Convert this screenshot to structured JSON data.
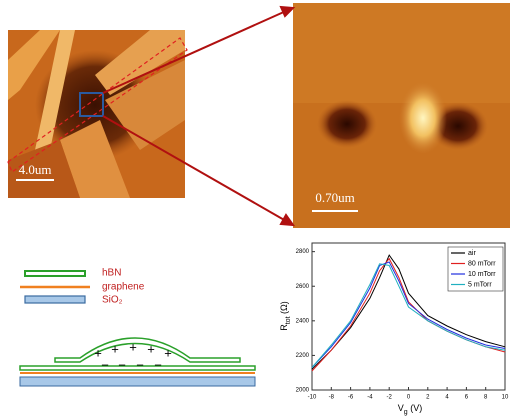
{
  "afm_large": {
    "scale_bar": "4.0um"
  },
  "afm_zoom": {
    "scale_bar": "0.70um"
  },
  "schematic": {
    "legend": [
      "hBN",
      "graphene",
      "SiO₂"
    ],
    "positive": "+",
    "negative": "−"
  },
  "chart_data": {
    "type": "line",
    "x_label": {
      "main": "V",
      "sub": "g",
      "unit": " (V)"
    },
    "y_label": {
      "main": "R",
      "sub": "tot",
      "unit": " (Ω)"
    },
    "x": [
      -10,
      -8,
      -6,
      -4,
      -3,
      -2,
      -1,
      0,
      2,
      4,
      6,
      8,
      10
    ],
    "xlim": [
      -10,
      10
    ],
    "xticks": [
      -10,
      -8,
      -6,
      -4,
      -2,
      0,
      2,
      4,
      6,
      8,
      10
    ],
    "ylim": [
      2000,
      2850
    ],
    "yticks": [
      2000,
      2200,
      2400,
      2600,
      2800
    ],
    "legend": "upper right",
    "series": [
      {
        "name": "air",
        "color": "#000000",
        "values": [
          2120,
          2230,
          2360,
          2530,
          2650,
          2780,
          2700,
          2560,
          2430,
          2370,
          2320,
          2280,
          2250
        ]
      },
      {
        "name": "80 mTorr",
        "color": "#e02020",
        "values": [
          2110,
          2230,
          2370,
          2560,
          2690,
          2760,
          2650,
          2510,
          2400,
          2340,
          2290,
          2250,
          2220
        ]
      },
      {
        "name": "10 mTorr",
        "color": "#2030e0",
        "values": [
          2130,
          2250,
          2390,
          2590,
          2720,
          2740,
          2630,
          2500,
          2410,
          2350,
          2300,
          2260,
          2240
        ]
      },
      {
        "name": "5 mTorr",
        "color": "#20b0c0",
        "values": [
          2130,
          2260,
          2400,
          2610,
          2730,
          2720,
          2600,
          2480,
          2400,
          2340,
          2290,
          2250,
          2230
        ]
      }
    ]
  }
}
